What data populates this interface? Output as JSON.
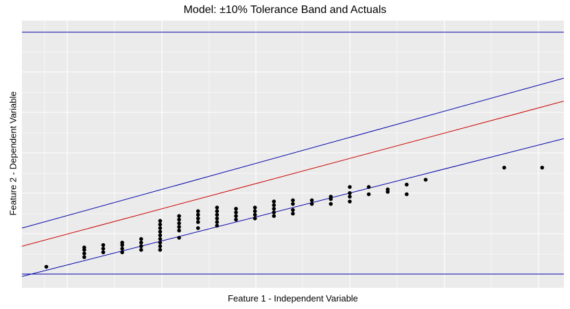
{
  "chart_data": {
    "type": "scatter",
    "title": "Model: ±10% Tolerance Band and Actuals",
    "xlabel": "Feature 1 - Independent Variable",
    "ylabel": "Feature 2 - Dependent Variable",
    "xlim": [
      0,
      100
    ],
    "ylim": [
      0,
      100
    ],
    "grid": true,
    "background": "#ebebeb",
    "point_color": "#000000",
    "fit_color": "#cc0000",
    "band_color": "#0000aa",
    "fit_line": [
      [
        0,
        11.5
      ],
      [
        100,
        71.5
      ]
    ],
    "upper_band": [
      [
        0,
        19
      ],
      [
        100,
        81
      ]
    ],
    "lower_band": [
      [
        0,
        -1
      ],
      [
        100,
        56
      ]
    ],
    "horizontal_bounds": [
      0,
      100
    ],
    "points": [
      [
        4.5,
        3
      ],
      [
        11.5,
        7
      ],
      [
        11.5,
        8.5
      ],
      [
        11.5,
        10
      ],
      [
        11.5,
        11
      ],
      [
        15,
        9
      ],
      [
        15,
        10.5
      ],
      [
        15,
        12
      ],
      [
        18.5,
        9
      ],
      [
        18.5,
        10.5
      ],
      [
        18.5,
        12
      ],
      [
        18.5,
        13
      ],
      [
        22,
        10
      ],
      [
        22,
        11.5
      ],
      [
        22,
        13
      ],
      [
        22,
        14.5
      ],
      [
        25.5,
        10
      ],
      [
        25.5,
        11.5
      ],
      [
        25.5,
        13
      ],
      [
        25.5,
        14.5
      ],
      [
        25.5,
        16
      ],
      [
        25.5,
        17.5
      ],
      [
        25.5,
        19
      ],
      [
        25.5,
        20.5
      ],
      [
        25.5,
        22
      ],
      [
        29,
        15
      ],
      [
        29,
        18
      ],
      [
        29,
        19.5
      ],
      [
        29,
        21
      ],
      [
        29,
        22.5
      ],
      [
        29,
        24
      ],
      [
        32.5,
        19
      ],
      [
        32.5,
        21.5
      ],
      [
        32.5,
        23
      ],
      [
        32.5,
        24.5
      ],
      [
        32.5,
        26
      ],
      [
        36,
        20
      ],
      [
        36,
        21.5
      ],
      [
        36,
        23
      ],
      [
        36,
        24.5
      ],
      [
        36,
        26
      ],
      [
        36,
        27.5
      ],
      [
        39.5,
        22.5
      ],
      [
        39.5,
        24
      ],
      [
        39.5,
        25.5
      ],
      [
        39.5,
        27
      ],
      [
        43,
        23
      ],
      [
        43,
        24.5
      ],
      [
        43,
        26
      ],
      [
        43,
        27.5
      ],
      [
        46.5,
        24
      ],
      [
        46.5,
        25.5
      ],
      [
        46.5,
        27
      ],
      [
        46.5,
        28.5
      ],
      [
        46.5,
        30
      ],
      [
        50,
        25
      ],
      [
        50,
        26.5
      ],
      [
        50,
        29
      ],
      [
        50,
        30.5
      ],
      [
        53.5,
        29
      ],
      [
        53.5,
        30.5
      ],
      [
        57,
        29
      ],
      [
        57,
        31
      ],
      [
        57,
        32
      ],
      [
        60.5,
        30
      ],
      [
        60.5,
        32
      ],
      [
        60.5,
        33.5
      ],
      [
        60.5,
        36
      ],
      [
        64,
        33
      ],
      [
        64,
        36
      ],
      [
        67.5,
        34
      ],
      [
        67.5,
        35
      ],
      [
        71,
        33
      ],
      [
        71,
        37
      ],
      [
        74.5,
        39
      ],
      [
        89,
        44
      ],
      [
        96,
        44
      ]
    ]
  }
}
